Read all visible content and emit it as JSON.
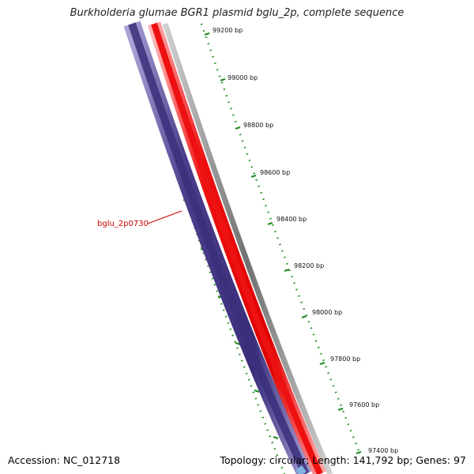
{
  "title": "Burkholderia glumae BGR1 plasmid bglu_2p, complete sequence",
  "footer": {
    "accession": "Accession: NC_012718",
    "stats": "Topology: circular; Length: 141,792 bp; Genes: 97"
  },
  "ruler": {
    "labels": [
      "99200 bp",
      "99000 bp",
      "98800 bp",
      "98600 bp",
      "98400 bp",
      "98200 bp",
      "98000 bp",
      "97800 bp",
      "97600 bp",
      "97400 bp"
    ]
  },
  "gene_label": {
    "text": "bglu_2p0730",
    "color": "#cc0000"
  },
  "colors": {
    "ruler": "#228b22",
    "reverse_strand": "#4b3e8c",
    "forward_strand": "#ee1111",
    "backbone": "#808080",
    "gene_label": "#cc0000"
  }
}
